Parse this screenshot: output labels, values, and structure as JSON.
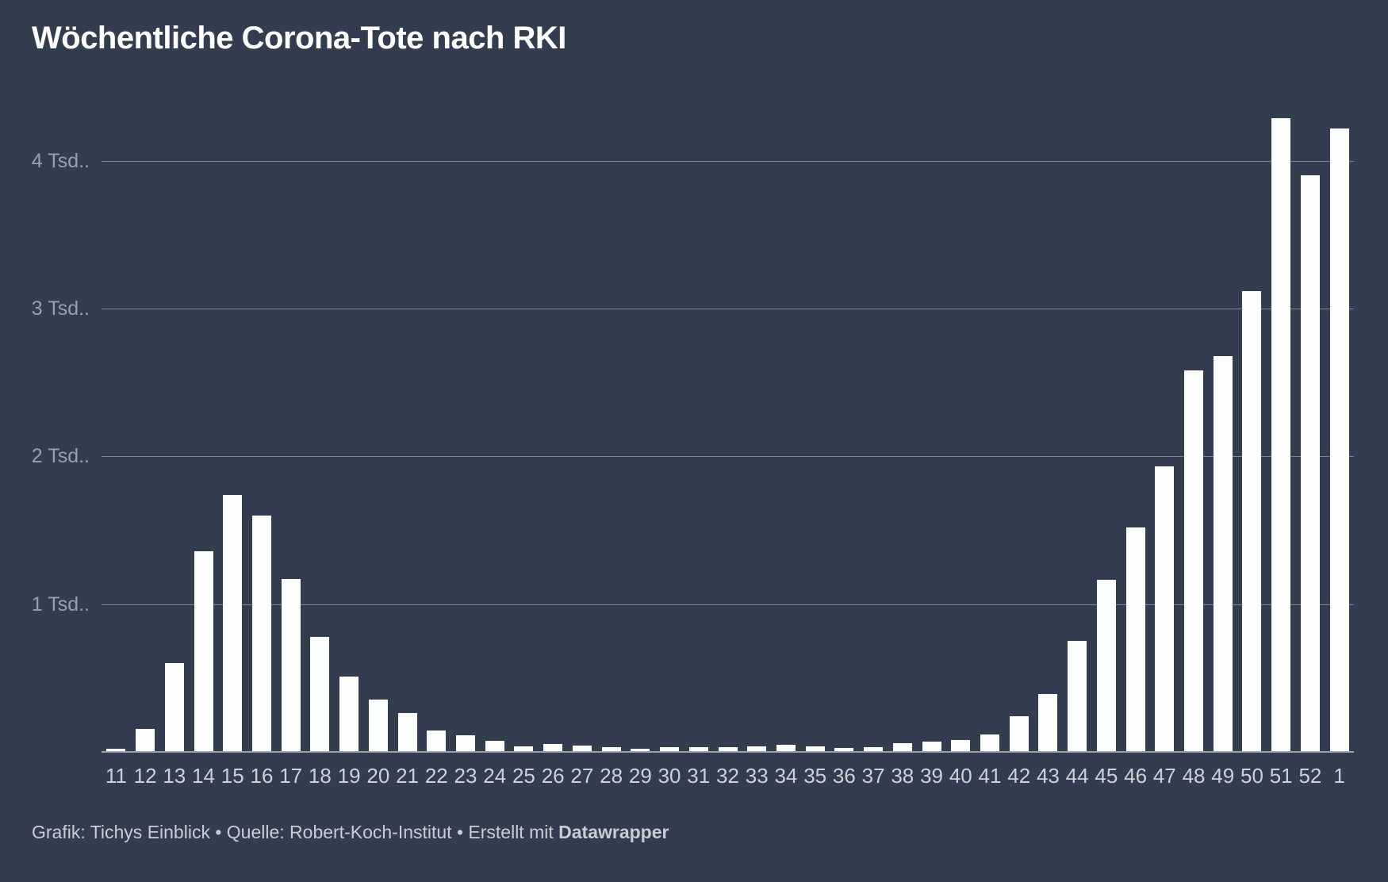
{
  "title": "Wöchentliche Corona-Tote nach RKI",
  "footer": {
    "prefix": "Grafik: Tichys Einblick • Quelle: Robert-Koch-Institut • Erstellt mit ",
    "brand": "Datawrapper"
  },
  "colors": {
    "background": "#323e4f",
    "bar": "#fdfffe",
    "gridline": "#7f8894",
    "axis_line": "#9aa2ad",
    "y_label": "#98a0aa",
    "x_label": "#ccd1d6",
    "title": "#ffffff",
    "footer": "#c9cdd3"
  },
  "y_axis": {
    "ticks": [
      {
        "value": 1000,
        "label": "1 Tsd.."
      },
      {
        "value": 2000,
        "label": "2 Tsd.."
      },
      {
        "value": 3000,
        "label": "3 Tsd.."
      },
      {
        "value": 4000,
        "label": "4 Tsd.."
      }
    ]
  },
  "chart_data": {
    "type": "bar",
    "title": "Wöchentliche Corona-Tote nach RKI",
    "categories": [
      "11",
      "12",
      "13",
      "14",
      "15",
      "16",
      "17",
      "18",
      "19",
      "20",
      "21",
      "22",
      "23",
      "24",
      "25",
      "26",
      "27",
      "28",
      "29",
      "30",
      "31",
      "32",
      "33",
      "34",
      "35",
      "36",
      "37",
      "38",
      "39",
      "40",
      "41",
      "42",
      "43",
      "44",
      "45",
      "46",
      "47",
      "48",
      "49",
      "50",
      "51",
      "52",
      "1"
    ],
    "values": [
      20,
      155,
      600,
      1360,
      1740,
      1600,
      1170,
      780,
      510,
      355,
      265,
      145,
      115,
      75,
      40,
      55,
      45,
      32,
      20,
      32,
      32,
      32,
      38,
      46,
      38,
      27,
      32,
      58,
      70,
      80,
      120,
      240,
      390,
      750,
      1165,
      1520,
      1930,
      2580,
      2680,
      3120,
      4290,
      3900,
      4220
    ],
    "xlabel": "",
    "ylabel": "",
    "ylim": [
      0,
      4500
    ],
    "grid": "horizontal",
    "legend": "none",
    "bar_color": "#fdfffe"
  }
}
